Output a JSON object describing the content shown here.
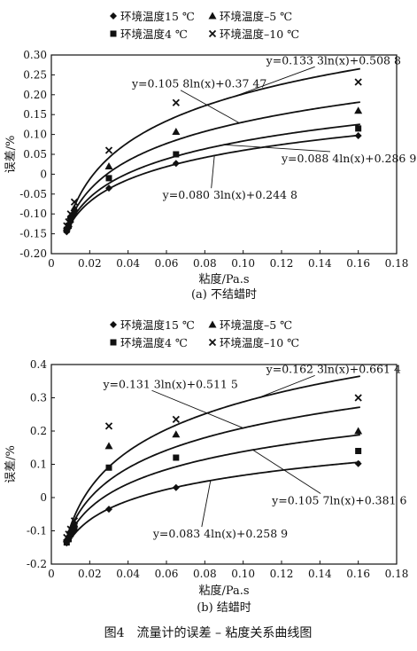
{
  "figure_caption": "图4　流量计的误差 – 粘度关系曲线图",
  "chart_data": [
    {
      "type": "scatter",
      "subtitle": "(a) 不结蜡时",
      "xlabel": "粘度/Pa.s",
      "ylabel": "误差/%",
      "xlim": [
        0,
        0.18
      ],
      "ylim": [
        -0.2,
        0.3
      ],
      "xticks": [
        "0",
        "0.02",
        "0.04",
        "0.06",
        "0.08",
        "0.10",
        "0.12",
        "0.14",
        "0.16",
        "0.18"
      ],
      "xtick_values": [
        0,
        0.02,
        0.04,
        0.06,
        0.08,
        0.1,
        0.12,
        0.14,
        0.16,
        0.18
      ],
      "yticks": [
        "-0.20",
        "-0.15",
        "-0.10",
        "-0.05",
        "0",
        "0.05",
        "0.10",
        "0.15",
        "0.20",
        "0.25",
        "0.30"
      ],
      "ytick_values": [
        -0.2,
        -0.15,
        -0.1,
        -0.05,
        0,
        0.05,
        0.1,
        0.15,
        0.2,
        0.25,
        0.3
      ],
      "grid": false,
      "legend_position": "top",
      "series": [
        {
          "name": "环境温度15 ℃",
          "marker": "diamond",
          "x": [
            0.008,
            0.009,
            0.01,
            0.012,
            0.03,
            0.065,
            0.16
          ],
          "y": [
            -0.145,
            -0.135,
            -0.12,
            -0.1,
            -0.035,
            0.027,
            0.097
          ],
          "fit": {
            "a": 0.0803,
            "b": 0.2448
          }
        },
        {
          "name": "环境温度4 ℃",
          "marker": "square",
          "x": [
            0.008,
            0.009,
            0.01,
            0.012,
            0.03,
            0.065,
            0.16
          ],
          "y": [
            -0.14,
            -0.13,
            -0.115,
            -0.095,
            -0.01,
            0.05,
            0.115
          ],
          "fit": {
            "a": 0.0884,
            "b": 0.2869
          }
        },
        {
          "name": "环境温度–5 ℃",
          "marker": "triangle",
          "x": [
            0.008,
            0.009,
            0.01,
            0.012,
            0.03,
            0.065,
            0.16
          ],
          "y": [
            -0.135,
            -0.125,
            -0.105,
            -0.085,
            0.02,
            0.107,
            0.16
          ],
          "fit": {
            "a": 0.1058,
            "b": 0.3747
          }
        },
        {
          "name": "环境温度–10 ℃",
          "marker": "x",
          "x": [
            0.008,
            0.009,
            0.01,
            0.012,
            0.03,
            0.065,
            0.16
          ],
          "y": [
            -0.13,
            -0.12,
            -0.1,
            -0.07,
            0.06,
            0.18,
            0.232
          ],
          "fit": {
            "a": 0.1333,
            "b": 0.5088
          }
        }
      ],
      "equations": [
        {
          "text": "y=0.133 3ln(x)+0.508 8",
          "x": 0.112,
          "y": 0.277
        },
        {
          "text": "y=0.105 8ln(x)+0.37 47",
          "x": 0.042,
          "y": 0.218
        },
        {
          "text": "y=0.088 4ln(x)+0.286 9",
          "x": 0.12,
          "y": 0.03
        },
        {
          "text": "y=0.080 3ln(x)+0.244 8",
          "x": 0.058,
          "y": -0.062
        }
      ]
    },
    {
      "type": "scatter",
      "subtitle": "(b) 结蜡时",
      "xlabel": "粘度/Pa.s",
      "ylabel": "误差/%",
      "xlim": [
        0,
        0.18
      ],
      "ylim": [
        -0.2,
        0.4
      ],
      "xticks": [
        "0",
        "0.02",
        "0.04",
        "0.06",
        "0.08",
        "0.10",
        "0.12",
        "0.14",
        "0.16",
        "0.18"
      ],
      "xtick_values": [
        0,
        0.02,
        0.04,
        0.06,
        0.08,
        0.1,
        0.12,
        0.14,
        0.16,
        0.18
      ],
      "yticks": [
        "-0.2",
        "-0.1",
        "0",
        "0.1",
        "0.2",
        "0.3",
        "0.4"
      ],
      "ytick_values": [
        -0.2,
        -0.1,
        0,
        0.1,
        0.2,
        0.3,
        0.4
      ],
      "grid": false,
      "legend_position": "top",
      "series": [
        {
          "name": "环境温度15 ℃",
          "marker": "diamond",
          "x": [
            0.008,
            0.009,
            0.01,
            0.012,
            0.03,
            0.065,
            0.16
          ],
          "y": [
            -0.13,
            -0.12,
            -0.115,
            -0.1,
            -0.035,
            0.03,
            0.102
          ],
          "fit": {
            "a": 0.0834,
            "b": 0.2589
          }
        },
        {
          "name": "环境温度4 ℃",
          "marker": "square",
          "x": [
            0.008,
            0.009,
            0.01,
            0.012,
            0.03,
            0.065,
            0.16
          ],
          "y": [
            -0.135,
            -0.125,
            -0.11,
            -0.09,
            0.09,
            0.12,
            0.14
          ],
          "fit": {
            "a": 0.1057,
            "b": 0.3816
          }
        },
        {
          "name": "环境温度–5 ℃",
          "marker": "triangle",
          "x": [
            0.008,
            0.009,
            0.01,
            0.012,
            0.03,
            0.065,
            0.16
          ],
          "y": [
            -0.125,
            -0.115,
            -0.1,
            -0.08,
            0.155,
            0.19,
            0.2
          ],
          "fit": {
            "a": 0.1313,
            "b": 0.5115
          }
        },
        {
          "name": "环境温度–10 ℃",
          "marker": "x",
          "x": [
            0.008,
            0.009,
            0.01,
            0.012,
            0.03,
            0.065,
            0.16
          ],
          "y": [
            -0.12,
            -0.11,
            -0.095,
            -0.07,
            0.215,
            0.235,
            0.3
          ],
          "fit": {
            "a": 0.1623,
            "b": 0.6614
          }
        }
      ],
      "equations": [
        {
          "text": "y=0.162 3ln(x)+0.661 4",
          "x": 0.112,
          "y": 0.375
        },
        {
          "text": "y=0.131 3ln(x)+0.511 5",
          "x": 0.027,
          "y": 0.33
        },
        {
          "text": "y=0.105 7ln(x)+0.381 6",
          "x": 0.115,
          "y": -0.02
        },
        {
          "text": "y=0.083 4ln(x)+0.258 9",
          "x": 0.053,
          "y": -0.12
        }
      ]
    }
  ]
}
